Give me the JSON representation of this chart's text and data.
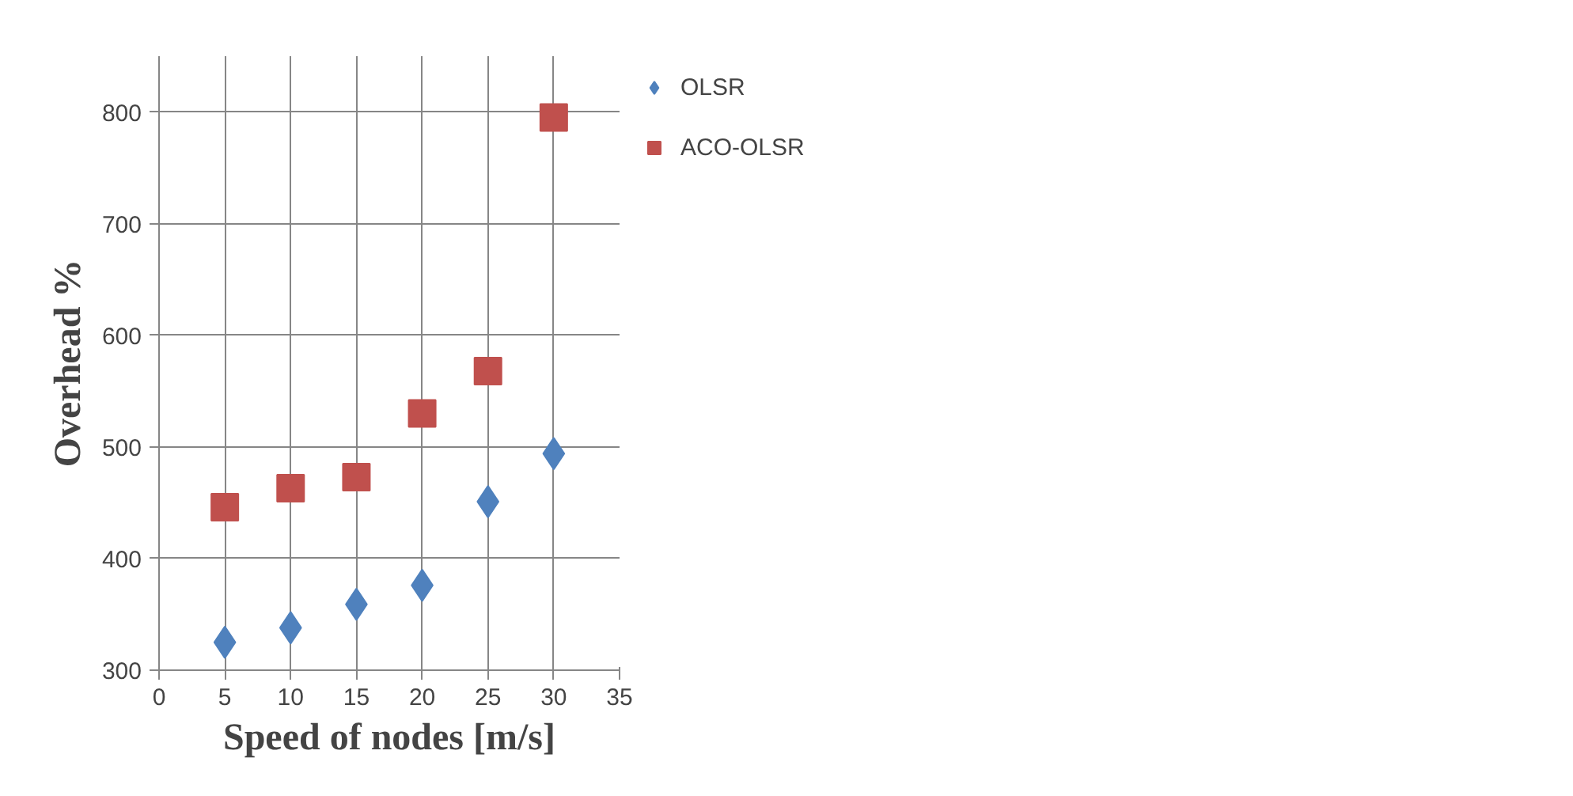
{
  "chart_data": {
    "type": "scatter",
    "xlabel": "Speed of nodes [m/s]",
    "ylabel": "Overhead %",
    "x": [
      5,
      10,
      15,
      20,
      25,
      30
    ],
    "series": [
      {
        "name": "OLSR",
        "color": "#4f81bd",
        "marker": "diamond",
        "values": [
          325,
          338,
          359,
          376,
          451,
          494
        ]
      },
      {
        "name": "ACO-OLSR",
        "color": "#c0504d",
        "marker": "square",
        "values": [
          446,
          463,
          473,
          530,
          568,
          795
        ]
      }
    ],
    "xlim": [
      0,
      35
    ],
    "xticks": [
      0,
      5,
      10,
      15,
      20,
      25,
      30,
      35
    ],
    "ylim": [
      300,
      850
    ],
    "yticks": [
      300,
      400,
      500,
      600,
      700,
      800
    ],
    "grid": true,
    "legend": "top right"
  }
}
